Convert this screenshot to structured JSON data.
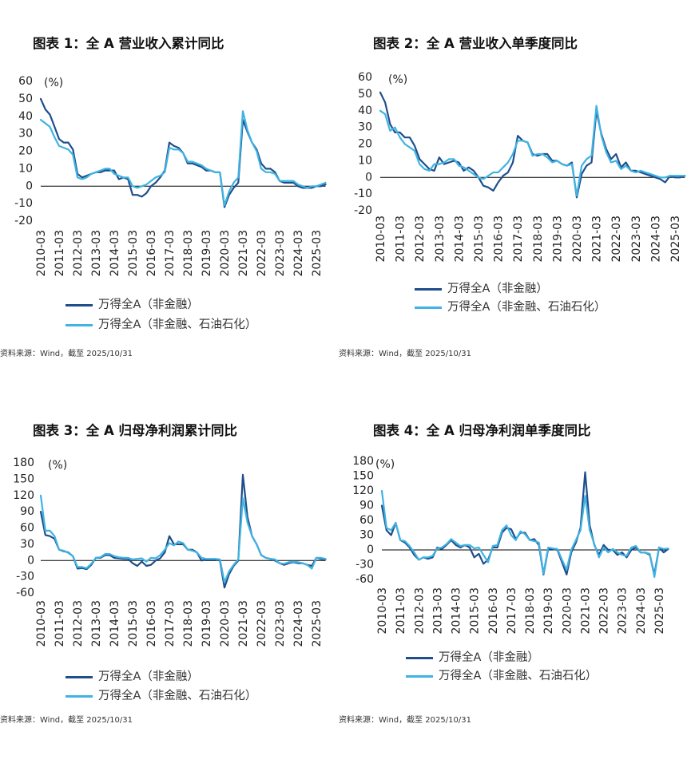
{
  "chart_data": [
    {
      "type": "line",
      "title": "图表 1：全 A 营业收入累计同比",
      "ylabel": "(%)",
      "ylim": [
        -20,
        60
      ],
      "y_ticks": [
        60,
        50,
        40,
        30,
        20,
        10,
        0,
        -10,
        -20
      ],
      "x_ticks": [
        "2010-03",
        "2011-03",
        "2012-03",
        "2013-03",
        "2014-03",
        "2015-03",
        "2016-03",
        "2017-03",
        "2018-03",
        "2019-03",
        "2020-03",
        "2021-03",
        "2022-03",
        "2023-03",
        "2024-03",
        "2025-03"
      ],
      "points_per_tick": 4,
      "series": [
        {
          "name": "万得全A（非金融）",
          "color": "#1f4e8a",
          "values": [
            50,
            44,
            41,
            34,
            27,
            25,
            25,
            21,
            7,
            5,
            6,
            7,
            8,
            8,
            9,
            9,
            9,
            4,
            5,
            4,
            -5,
            -5,
            -6,
            -4,
            0,
            2,
            5,
            9,
            25,
            23,
            22,
            19,
            13,
            13,
            12,
            11,
            9,
            9,
            8,
            8,
            -12,
            -5,
            -1,
            2,
            38,
            31,
            25,
            21,
            13,
            10,
            10,
            8,
            3,
            2,
            2,
            2,
            0,
            -1,
            -1,
            -1,
            0,
            0,
            1
          ]
        },
        {
          "name": "万得全A（非金融、石油石化）",
          "color": "#3fb3e3",
          "values": [
            38,
            36,
            34,
            28,
            23,
            22,
            21,
            18,
            5,
            4,
            5,
            7,
            8,
            9,
            10,
            10,
            7,
            6,
            5,
            5,
            0,
            -1,
            0,
            1,
            3,
            5,
            6,
            8,
            22,
            21,
            21,
            19,
            14,
            14,
            13,
            12,
            10,
            9,
            8,
            8,
            -11,
            -3,
            2,
            5,
            43,
            32,
            25,
            20,
            10,
            8,
            8,
            7,
            3,
            3,
            3,
            3,
            1,
            0,
            -1,
            0,
            0,
            1,
            2
          ]
        }
      ],
      "source": "资料来源：Wind，截至 2025/10/31"
    },
    {
      "type": "line",
      "title": "图表 2：全 A 营业收入单季度同比",
      "ylabel": "(%)",
      "ylim": [
        -20,
        60
      ],
      "y_ticks": [
        60,
        50,
        40,
        30,
        20,
        10,
        0,
        -10,
        -20
      ],
      "x_ticks": [
        "2010-03",
        "2011-03",
        "2012-03",
        "2013-03",
        "2014-03",
        "2015-03",
        "2016-03",
        "2017-03",
        "2018-03",
        "2019-03",
        "2020-03",
        "2021-03",
        "2022-03",
        "2023-03",
        "2024-03",
        "2025-03"
      ],
      "points_per_tick": 4,
      "series": [
        {
          "name": "万得全A（非金融）",
          "color": "#1f4e8a",
          "values": [
            51,
            45,
            32,
            27,
            27,
            24,
            24,
            19,
            11,
            8,
            5,
            4,
            12,
            8,
            9,
            10,
            9,
            4,
            6,
            4,
            0,
            -5,
            -6,
            -8,
            -3,
            1,
            3,
            9,
            25,
            22,
            21,
            14,
            13,
            14,
            14,
            10,
            10,
            8,
            7,
            9,
            -12,
            2,
            7,
            9,
            40,
            26,
            17,
            11,
            14,
            6,
            9,
            4,
            4,
            3,
            2,
            1,
            0,
            -1,
            -3,
            1,
            0,
            0,
            1
          ]
        },
        {
          "name": "万得全A（非金融、石油石化）",
          "color": "#3fb3e3",
          "values": [
            40,
            38,
            28,
            30,
            24,
            20,
            18,
            16,
            8,
            5,
            4,
            8,
            8,
            9,
            11,
            11,
            7,
            6,
            4,
            2,
            0,
            -1,
            1,
            3,
            3,
            6,
            9,
            14,
            22,
            22,
            21,
            13,
            14,
            14,
            12,
            9,
            10,
            8,
            7,
            8,
            -11,
            7,
            11,
            13,
            43,
            25,
            15,
            9,
            10,
            5,
            7,
            4,
            3,
            4,
            3,
            2,
            1,
            0,
            0,
            1,
            1,
            1,
            1
          ]
        }
      ],
      "source": "资料来源：Wind，截至 2025/10/31"
    },
    {
      "type": "line",
      "title": "图表 3：全 A 归母净利润累计同比",
      "ylabel": "(%)",
      "ylim": [
        -60,
        180
      ],
      "y_ticks": [
        180,
        150,
        120,
        90,
        60,
        30,
        0,
        -30,
        -60
      ],
      "x_ticks": [
        "2010-03",
        "2011-03",
        "2012-03",
        "2013-03",
        "2014-03",
        "2015-03",
        "2016-03",
        "2017-03",
        "2018-03",
        "2019-03",
        "2020-03",
        "2021-03",
        "2022-03",
        "2023-03",
        "2024-03",
        "2025-03"
      ],
      "points_per_tick": 4,
      "series": [
        {
          "name": "万得全A（非金融）",
          "color": "#1f4e8a",
          "values": [
            90,
            47,
            45,
            40,
            20,
            17,
            15,
            8,
            -15,
            -14,
            -16,
            -8,
            5,
            5,
            10,
            10,
            5,
            4,
            3,
            3,
            -5,
            -10,
            -2,
            -10,
            -8,
            0,
            4,
            15,
            45,
            30,
            30,
            30,
            20,
            20,
            15,
            0,
            2,
            2,
            2,
            0,
            -50,
            -25,
            -10,
            0,
            158,
            80,
            45,
            30,
            10,
            5,
            3,
            0,
            -5,
            -8,
            -5,
            -3,
            -5,
            -5,
            -8,
            -10,
            5,
            3,
            2
          ]
        },
        {
          "name": "万得全A（非金融、石油石化）",
          "color": "#3fb3e3",
          "values": [
            120,
            55,
            55,
            45,
            20,
            18,
            14,
            8,
            -12,
            -12,
            -14,
            -6,
            5,
            6,
            12,
            12,
            8,
            6,
            5,
            5,
            2,
            3,
            4,
            -2,
            5,
            4,
            10,
            20,
            32,
            28,
            35,
            32,
            20,
            18,
            15,
            5,
            3,
            3,
            3,
            2,
            -40,
            -20,
            -8,
            2,
            115,
            70,
            45,
            30,
            10,
            5,
            3,
            2,
            -5,
            -6,
            -3,
            -2,
            -3,
            -5,
            -8,
            -15,
            5,
            5,
            3
          ]
        }
      ],
      "source": "资料来源：Wind，截至 2025/10/31"
    },
    {
      "type": "line",
      "title": "图表 4：全 A 归母净利润单季度同比",
      "ylabel": "(%)",
      "ylim": [
        -60,
        180
      ],
      "y_ticks": [
        180,
        150,
        120,
        90,
        60,
        30,
        0,
        -30,
        -60
      ],
      "x_ticks": [
        "2010-03",
        "2011-03",
        "2012-03",
        "2013-03",
        "2014-03",
        "2015-03",
        "2016-03",
        "2017-03",
        "2018-03",
        "2019-03",
        "2020-03",
        "2021-03",
        "2022-03",
        "2023-03",
        "2024-03",
        "2025-03"
      ],
      "points_per_tick": 4,
      "series": [
        {
          "name": "万得全A（非金融）",
          "color": "#1f4e8a",
          "values": [
            90,
            40,
            30,
            55,
            20,
            15,
            5,
            -10,
            -20,
            -15,
            -18,
            -15,
            5,
            2,
            10,
            20,
            10,
            5,
            10,
            5,
            -15,
            -8,
            -28,
            -20,
            5,
            5,
            35,
            45,
            42,
            22,
            35,
            35,
            20,
            22,
            10,
            -50,
            2,
            2,
            0,
            -25,
            -50,
            -5,
            15,
            45,
            158,
            50,
            10,
            -10,
            10,
            0,
            0,
            -10,
            -5,
            -15,
            0,
            5,
            -5,
            -5,
            -10,
            -50,
            5,
            -5,
            2
          ]
        },
        {
          "name": "万得全A（非金融、石油石化）",
          "color": "#3fb3e3",
          "values": [
            120,
            45,
            40,
            55,
            20,
            18,
            8,
            -5,
            -20,
            -15,
            -15,
            -12,
            3,
            5,
            12,
            22,
            15,
            8,
            10,
            10,
            3,
            5,
            -10,
            -25,
            8,
            10,
            40,
            50,
            30,
            20,
            38,
            32,
            20,
            18,
            15,
            -48,
            5,
            3,
            2,
            -20,
            -40,
            0,
            20,
            40,
            110,
            40,
            12,
            -15,
            5,
            -5,
            2,
            -5,
            -10,
            -12,
            5,
            8,
            -5,
            -5,
            -8,
            -55,
            5,
            2,
            3
          ]
        }
      ],
      "source": "资料来源：Wind，截至 2025/10/31"
    }
  ]
}
